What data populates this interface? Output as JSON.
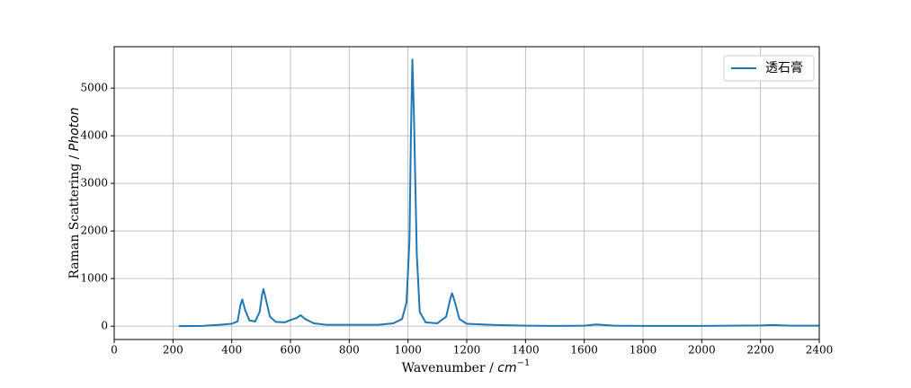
{
  "chart_data": {
    "type": "line",
    "xlabel": [
      "Wavenumber / ",
      "cm",
      "−1"
    ],
    "ylabel": [
      "Raman Scattering / ",
      "Photon"
    ],
    "x": [
      220,
      300,
      360,
      400,
      420,
      430,
      436,
      445,
      460,
      480,
      495,
      503,
      508,
      515,
      530,
      550,
      580,
      600,
      620,
      635,
      650,
      680,
      720,
      800,
      900,
      950,
      980,
      995,
      1005,
      1010,
      1015,
      1020,
      1030,
      1040,
      1060,
      1100,
      1130,
      1145,
      1150,
      1160,
      1175,
      1200,
      1300,
      1400,
      1500,
      1600,
      1640,
      1700,
      1800,
      2000,
      2200,
      2240,
      2300,
      2400
    ],
    "series": [
      {
        "name": "透石膏",
        "color": "#1f77b4",
        "values": [
          0,
          5,
          30,
          50,
          100,
          450,
          560,
          350,
          120,
          100,
          300,
          650,
          780,
          600,
          200,
          90,
          80,
          130,
          170,
          230,
          150,
          60,
          30,
          30,
          30,
          60,
          150,
          500,
          1800,
          4000,
          5600,
          4500,
          1500,
          300,
          80,
          60,
          200,
          600,
          690,
          500,
          150,
          50,
          25,
          10,
          5,
          10,
          35,
          10,
          5,
          5,
          15,
          25,
          10,
          10
        ]
      }
    ],
    "xlim": [
      0,
      2400
    ],
    "xticks": [
      0,
      200,
      400,
      600,
      800,
      1000,
      1200,
      1400,
      1600,
      1800,
      2000,
      2200,
      2400
    ],
    "ylim": [
      -280,
      5870
    ],
    "yticks": [
      0,
      1000,
      2000,
      3000,
      4000,
      5000
    ],
    "grid": true,
    "legend": "upper-right"
  }
}
